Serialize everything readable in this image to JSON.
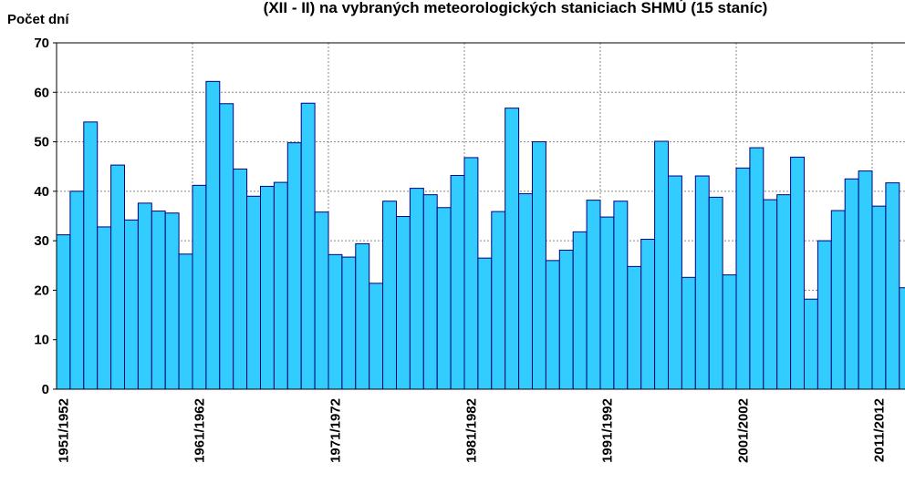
{
  "chart_data": {
    "type": "bar",
    "title": "(XII - II) na vybraných meteorologických staniciach SHMÚ (15 staníc)",
    "y_label": "Počet dní",
    "categories": [
      "1951/1952",
      null,
      null,
      null,
      null,
      null,
      null,
      null,
      null,
      null,
      "1961/1962",
      null,
      null,
      null,
      null,
      null,
      null,
      null,
      null,
      null,
      "1971/1972",
      null,
      null,
      null,
      null,
      null,
      null,
      null,
      null,
      null,
      "1981/1982",
      null,
      null,
      null,
      null,
      null,
      null,
      null,
      null,
      null,
      "1991/1992",
      null,
      null,
      null,
      null,
      null,
      null,
      null,
      null,
      null,
      "2001/2002",
      null,
      null,
      null,
      null,
      null,
      null,
      null,
      null,
      null,
      "2011/2012",
      null,
      null
    ],
    "values": [
      31.2,
      40,
      54,
      32.8,
      45.3,
      34.2,
      37.6,
      36,
      35.6,
      27.3,
      41.2,
      62.2,
      57.7,
      44.5,
      39,
      41,
      41.8,
      49.8,
      57.8,
      35.8,
      27.2,
      26.7,
      29.4,
      21.4,
      38,
      34.9,
      40.6,
      39.3,
      36.7,
      43.2,
      46.8,
      26.5,
      35.9,
      56.8,
      39.5,
      50,
      26,
      28.1,
      31.8,
      38.2,
      34.8,
      38,
      24.8,
      30.3,
      50.1,
      43.1,
      22.6,
      43.1,
      38.8,
      23.1,
      44.7,
      48.8,
      38.3,
      39.3,
      46.9,
      18.2,
      30,
      36.1,
      42.5,
      44.1,
      37,
      41.7,
      20.5
    ],
    "color": "#33ccff",
    "ylim": [
      0,
      70
    ],
    "yticks": [
      0,
      10,
      20,
      30,
      40,
      50,
      60,
      70
    ],
    "grid": true
  }
}
